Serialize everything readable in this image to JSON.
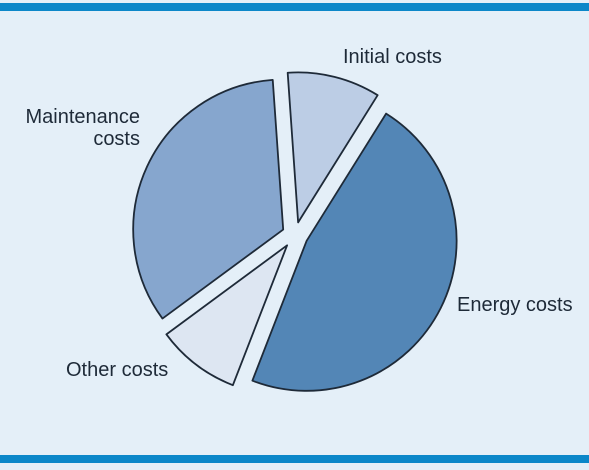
{
  "colors": {
    "frame": "#0b87c9",
    "background": "#e4eff8",
    "outline": "#1e2a38"
  },
  "chart_data": {
    "type": "pie",
    "title": "",
    "exploded": true,
    "slices": [
      {
        "label": "Initial costs",
        "value": 10,
        "color": "#bccde5"
      },
      {
        "label": "Energy costs",
        "value": 47,
        "color": "#5386b6"
      },
      {
        "label": "Other costs",
        "value": 9,
        "color": "#dde6f2"
      },
      {
        "label": "Maintenance costs",
        "value": 34,
        "color": "#86a6ce"
      }
    ],
    "labels": {
      "initial": "Initial costs",
      "energy": "Energy costs",
      "other": "Other costs",
      "maintenance_line1": "Maintenance",
      "maintenance_line2": "costs"
    }
  }
}
